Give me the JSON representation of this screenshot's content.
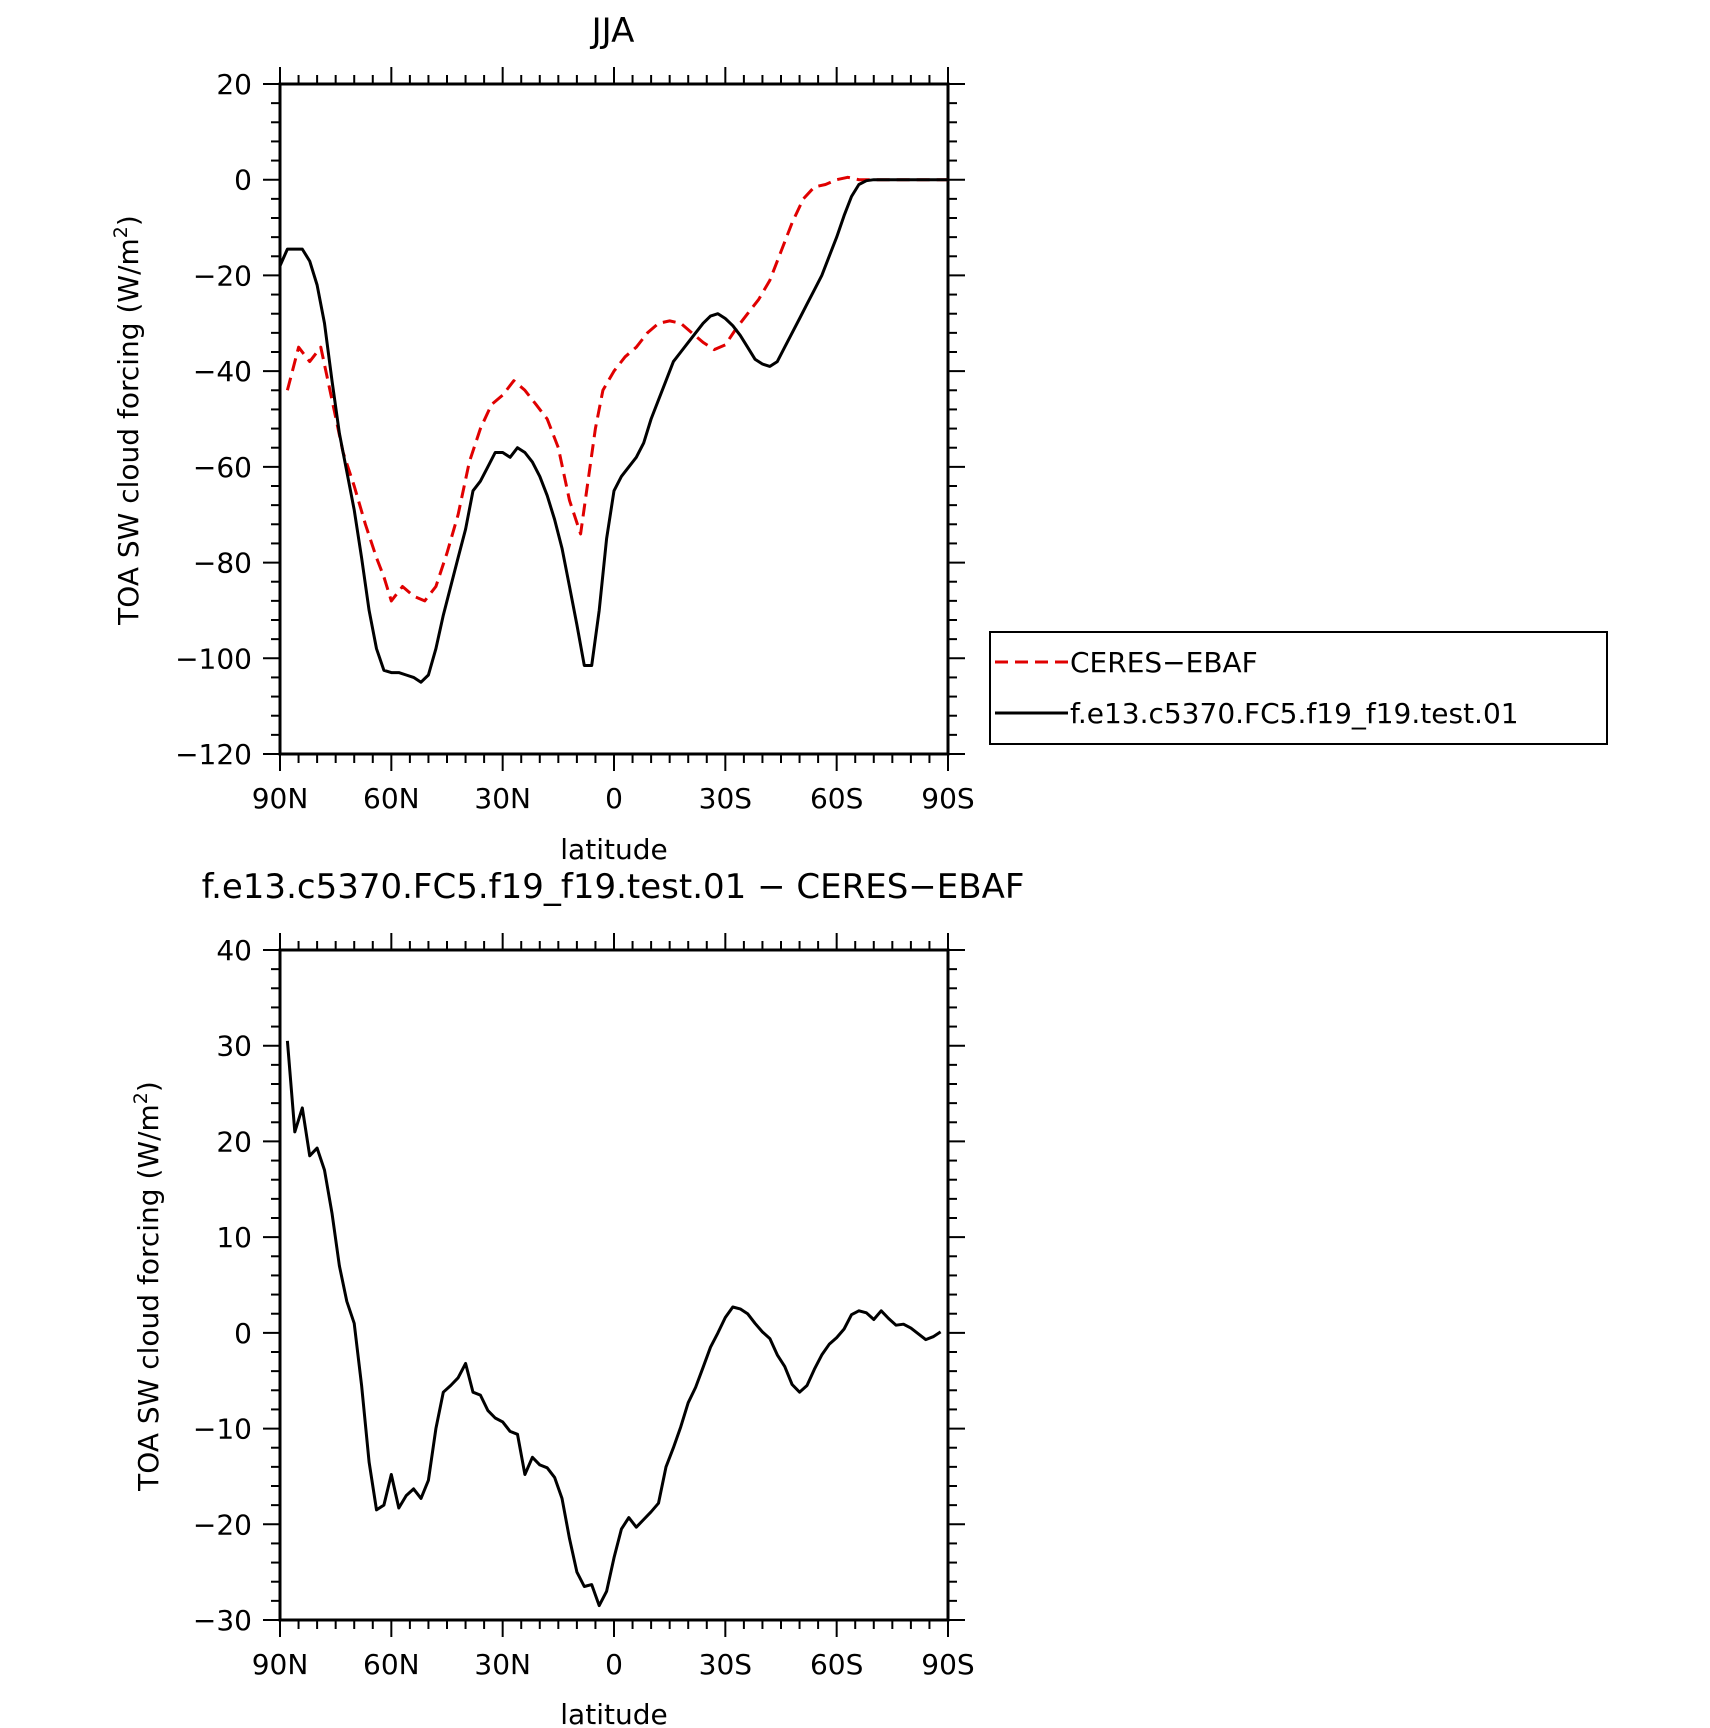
{
  "chart_data": [
    {
      "type": "line",
      "title": "JJA",
      "xlabel": "latitude",
      "ylabel": "TOA SW cloud forcing (W/m²)",
      "ylabel_main": "TOA SW cloud forcing (W/m",
      "ylabel_sup": "2",
      "ylabel_end": ")",
      "xlim": [
        90,
        -90
      ],
      "ylim": [
        -120,
        20
      ],
      "x_ticks": [
        90,
        60,
        30,
        0,
        -30,
        -60,
        -90
      ],
      "x_tick_labels": [
        "90N",
        "60N",
        "30N",
        "0",
        "30S",
        "60S",
        "90S"
      ],
      "y_ticks": [
        20,
        0,
        -20,
        -40,
        -60,
        -80,
        -100,
        -120
      ],
      "y_tick_labels": [
        "20",
        "0",
        "−20",
        "−40",
        "−60",
        "−80",
        "−100",
        "−120"
      ],
      "legend_position": "right",
      "series": [
        {
          "name": "CERES−EBAF",
          "color": "#e00000",
          "dash": "dashed",
          "x": [
            88,
            85,
            82,
            79,
            76,
            73,
            70,
            67,
            64,
            62,
            60,
            57,
            54,
            51,
            48,
            45,
            42,
            39,
            36,
            33,
            30,
            27,
            24,
            21,
            18,
            15,
            12,
            9,
            7,
            5,
            3,
            0,
            -3,
            -6,
            -9,
            -12,
            -15,
            -18,
            -21,
            -24,
            -27,
            -30,
            -33,
            -36,
            -39,
            -42,
            -45,
            -48,
            -51,
            -54,
            -57,
            -60,
            -63,
            -66,
            -69,
            -72,
            -75,
            -78,
            -81,
            -84,
            -87,
            -90
          ],
          "y": [
            -44,
            -35,
            -38,
            -35,
            -46,
            -57,
            -64,
            -72,
            -79,
            -83,
            -88,
            -85,
            -87,
            -88,
            -85,
            -78,
            -70,
            -59,
            -52,
            -47,
            -45,
            -42,
            -44,
            -47,
            -50,
            -56,
            -67,
            -74,
            -63,
            -52,
            -44,
            -40,
            -37,
            -35,
            -32,
            -30,
            -29.5,
            -30,
            -32,
            -34,
            -35.5,
            -34.5,
            -31,
            -28,
            -25,
            -21,
            -15,
            -9,
            -4,
            -1.5,
            -1,
            0,
            0.5,
            0,
            0,
            0,
            0,
            0,
            0,
            0,
            0,
            0
          ]
        },
        {
          "name": "f.e13.c5370.FC5.f19_f19.test.01",
          "color": "#000000",
          "dash": "solid",
          "x": [
            90,
            88,
            86,
            84,
            82,
            80,
            78,
            76,
            74,
            72,
            70,
            68,
            66,
            64,
            62,
            60,
            58,
            56,
            54,
            52,
            50,
            48,
            46,
            44,
            42,
            40,
            38,
            36,
            34,
            32,
            30,
            28,
            26,
            24,
            22,
            20,
            18,
            16,
            14,
            12,
            10,
            8,
            6,
            4,
            2,
            0,
            -2,
            -4,
            -6,
            -8,
            -10,
            -12,
            -14,
            -16,
            -18,
            -20,
            -22,
            -24,
            -26,
            -28,
            -30,
            -32,
            -34,
            -36,
            -38,
            -40,
            -42,
            -44,
            -46,
            -48,
            -50,
            -52,
            -54,
            -56,
            -58,
            -60,
            -62,
            -64,
            -66,
            -68,
            -70,
            -72,
            -74,
            -76,
            -78,
            -80,
            -82,
            -84,
            -86,
            -88,
            -90
          ],
          "y": [
            -18,
            -14.5,
            -14.5,
            -14.5,
            -17,
            -22,
            -30,
            -42,
            -53,
            -61,
            -69,
            -79,
            -90,
            -98,
            -102.5,
            -103,
            -103,
            -103.5,
            -104,
            -105,
            -103.5,
            -98,
            -91,
            -85,
            -79,
            -73,
            -65,
            -63,
            -60,
            -57,
            -57,
            -58,
            -56,
            -57,
            -59,
            -62,
            -66,
            -71,
            -77,
            -85,
            -93,
            -101.5,
            -101.5,
            -90,
            -75,
            -65,
            -62,
            -60,
            -58,
            -55,
            -50,
            -46,
            -42,
            -38,
            -36,
            -34,
            -32,
            -30,
            -28.5,
            -28,
            -29,
            -30.5,
            -32.5,
            -35,
            -37.5,
            -38.5,
            -39,
            -38,
            -35,
            -32,
            -29,
            -26,
            -23,
            -20,
            -16,
            -12,
            -7.5,
            -3.5,
            -1,
            -0.2,
            0,
            0,
            0,
            0,
            0,
            0,
            0,
            0,
            0,
            0,
            0
          ]
        }
      ]
    },
    {
      "type": "line",
      "title": "f.e13.c5370.FC5.f19_f19.test.01 − CERES−EBAF",
      "xlabel": "latitude",
      "ylabel": "TOA SW cloud forcing (W/m²)",
      "ylabel_main": "TOA SW cloud forcing (W/m",
      "ylabel_sup": "2",
      "ylabel_end": ")",
      "xlim": [
        90,
        -90
      ],
      "ylim": [
        -30,
        40
      ],
      "x_ticks": [
        90,
        60,
        30,
        0,
        -30,
        -60,
        -90
      ],
      "x_tick_labels": [
        "90N",
        "60N",
        "30N",
        "0",
        "30S",
        "60S",
        "90S"
      ],
      "y_ticks": [
        40,
        30,
        20,
        10,
        0,
        -10,
        -20,
        -30
      ],
      "y_tick_labels": [
        "40",
        "30",
        "20",
        "10",
        "0",
        "−10",
        "−20",
        "−30"
      ],
      "series": [
        {
          "name": "",
          "color": "#000000",
          "dash": "solid",
          "x": [
            88,
            86,
            84,
            82,
            80,
            78,
            76,
            74,
            72,
            70,
            68,
            66,
            64,
            62,
            60,
            58,
            56,
            54,
            52,
            50,
            48,
            46,
            44,
            42,
            40,
            38,
            36,
            34,
            32,
            30,
            28,
            26,
            24,
            22,
            20,
            18,
            16,
            14,
            12,
            10,
            8,
            6,
            4,
            2,
            0,
            -2,
            -4,
            -6,
            -8,
            -10,
            -12,
            -14,
            -16,
            -18,
            -20,
            -22,
            -24,
            -26,
            -28,
            -30,
            -32,
            -34,
            -36,
            -38,
            -40,
            -42,
            -44,
            -46,
            -48,
            -50,
            -52,
            -54,
            -56,
            -58,
            -60,
            -62,
            -64,
            -66,
            -68,
            -70,
            -72,
            -74,
            -76,
            -78,
            -80,
            -82,
            -84,
            -86,
            -88
          ],
          "y": [
            30.5,
            21,
            23.5,
            18.5,
            19.3,
            17,
            12.5,
            7,
            3.3,
            1,
            -5.5,
            -13.5,
            -18.5,
            -18,
            -14.8,
            -18.3,
            -17,
            -16.3,
            -17.3,
            -15.4,
            -10,
            -6.2,
            -5.5,
            -4.7,
            -3.2,
            -6.2,
            -6.5,
            -8.1,
            -8.9,
            -9.3,
            -10.3,
            -10.6,
            -14.8,
            -13,
            -13.8,
            -14.1,
            -15.1,
            -17.3,
            -21.5,
            -25,
            -26.5,
            -26.3,
            -28.5,
            -27,
            -23.5,
            -20.5,
            -19.3,
            -20.3,
            -19.5,
            -18.7,
            -17.8,
            -14,
            -12,
            -9.8,
            -7.3,
            -5.7,
            -3.6,
            -1.5,
            0,
            1.6,
            2.7,
            2.5,
            2,
            1,
            0.1,
            -0.6,
            -2.3,
            -3.5,
            -5.4,
            -6.2,
            -5.5,
            -3.8,
            -2.3,
            -1.2,
            -0.5,
            0.4,
            1.9,
            2.3,
            2.1,
            1.4,
            2.3,
            1.5,
            0.8,
            0.9,
            0.5,
            -0.1,
            -0.7,
            -0.4,
            0.1
          ]
        }
      ]
    }
  ]
}
